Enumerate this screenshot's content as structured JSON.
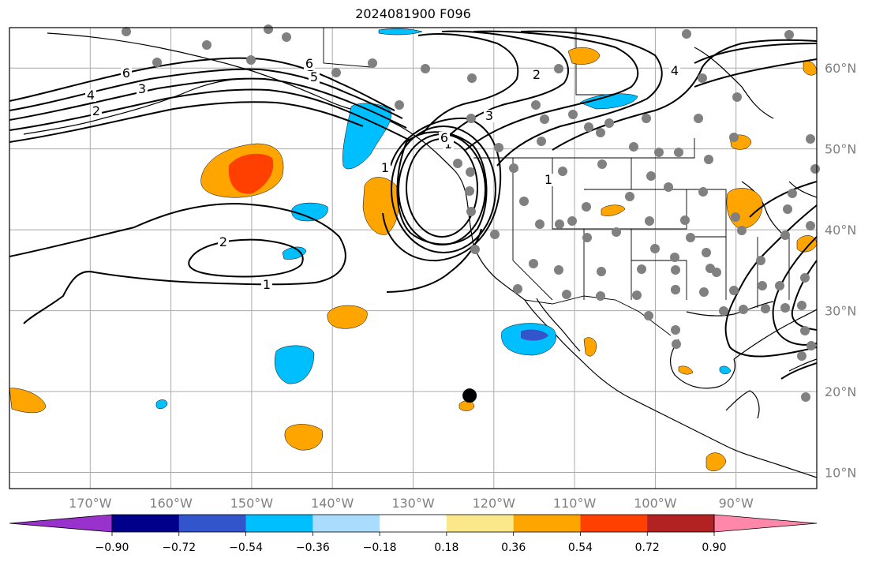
{
  "title": "2024081900 F096",
  "map": {
    "lon_range": [
      -180,
      -80
    ],
    "lat_range": [
      8,
      65
    ],
    "lon_ticks": [
      {
        "value": -170,
        "label": "170°W"
      },
      {
        "value": -160,
        "label": "160°W"
      },
      {
        "value": -150,
        "label": "150°W"
      },
      {
        "value": -140,
        "label": "140°W"
      },
      {
        "value": -130,
        "label": "130°W"
      },
      {
        "value": -120,
        "label": "120°W"
      },
      {
        "value": -110,
        "label": "110°W"
      },
      {
        "value": -100,
        "label": "100°W"
      },
      {
        "value": -90,
        "label": "90°W"
      }
    ],
    "lat_ticks": [
      {
        "value": 60,
        "label": "60°N"
      },
      {
        "value": 50,
        "label": "50°N"
      },
      {
        "value": 40,
        "label": "40°N"
      },
      {
        "value": 30,
        "label": "30°N"
      },
      {
        "value": 20,
        "label": "20°N"
      },
      {
        "value": 10,
        "label": "10°N"
      }
    ],
    "contour_labels": [
      "6",
      "4",
      "3",
      "2",
      "1",
      "2",
      "1",
      "6",
      "5",
      "3",
      "2",
      "1",
      "4",
      "1",
      "6"
    ],
    "marker": {
      "lon": -123,
      "lat": 19.5
    }
  },
  "colorbar": {
    "colors": [
      "#9932cc",
      "#00008b",
      "#3355cc",
      "#00bfff",
      "#aadcfe",
      "#ffffff",
      "#fbe88a",
      "#ffa500",
      "#ff4000",
      "#b22222",
      "#ff88aa"
    ],
    "ticks": [
      "−0.90",
      "−0.72",
      "−0.54",
      "−0.36",
      "−0.18",
      "0.18",
      "0.36",
      "0.54",
      "0.72",
      "0.90"
    ]
  }
}
